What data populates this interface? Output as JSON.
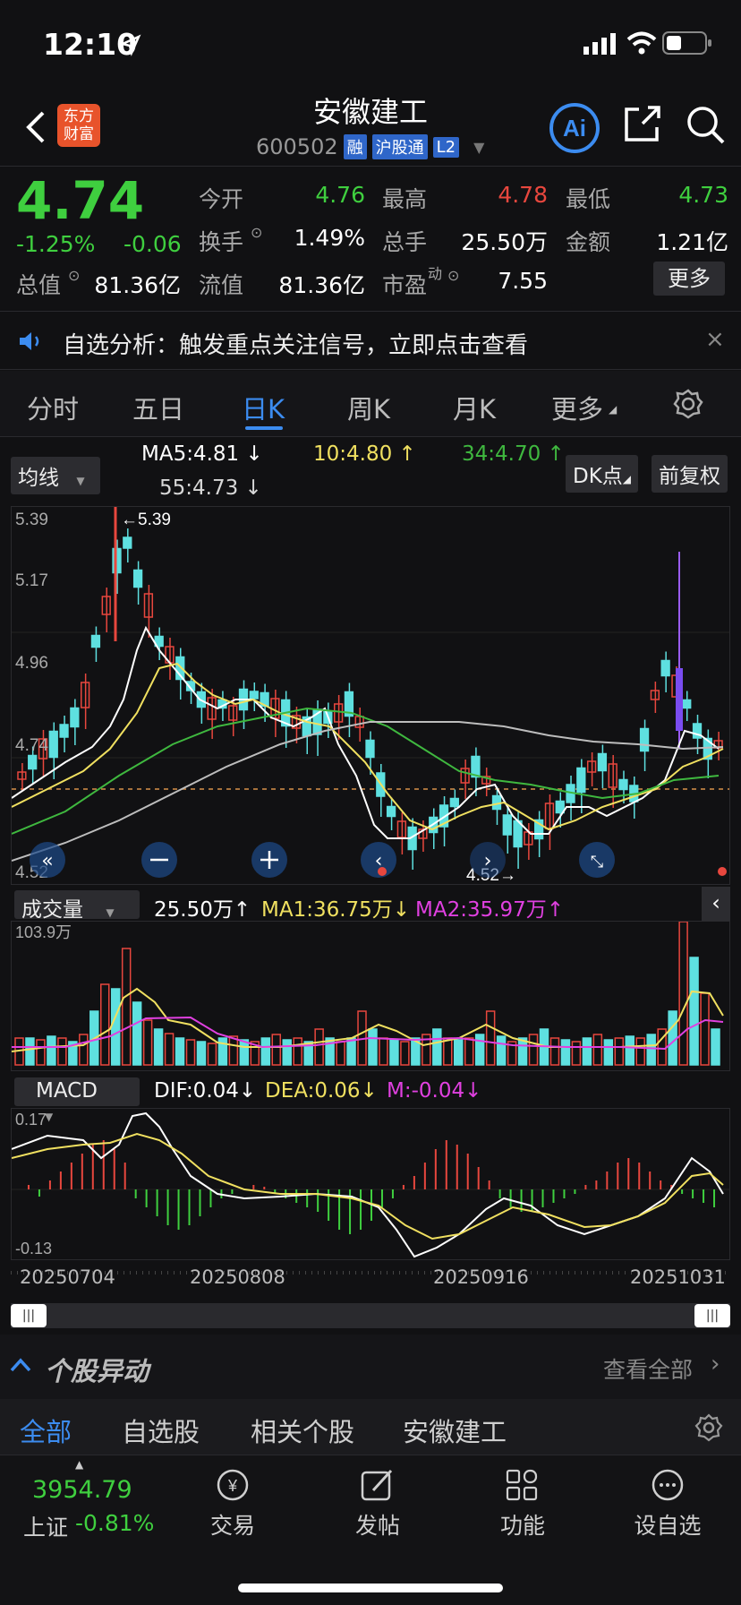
{
  "status": {
    "time": "12:10"
  },
  "header": {
    "title": "安徽建工",
    "code": "600502",
    "tags": [
      "融",
      "沪股通",
      "L2"
    ],
    "logo_text": [
      "东方",
      "财富"
    ]
  },
  "quote": {
    "price": "4.74",
    "change_pct": "-1.25%",
    "change": "-0.06",
    "open_label": "今开",
    "open": "4.76",
    "high_label": "最高",
    "high": "4.78",
    "low_label": "最低",
    "low": "4.73",
    "turnover_label": "换手",
    "turnover": "1.49%",
    "volume_label": "总手",
    "volume": "25.50万",
    "amount_label": "金额",
    "amount": "1.21亿",
    "total_cap_label": "总值",
    "total_cap": "81.36亿",
    "float_cap_label": "流值",
    "float_cap": "81.36亿",
    "pe_label": "市盈",
    "pe_sup": "动",
    "pe": "7.55",
    "more": "更多"
  },
  "notice": {
    "text": "自选分析：触发重点关注信号，立即点击查看"
  },
  "tabs": [
    "分时",
    "五日",
    "日K",
    "周K",
    "月K",
    "更多"
  ],
  "ma_bar": {
    "selector": "均线",
    "ma5": "MA5:4.81",
    "ma10": "10:4.80",
    "ma34": "34:4.70",
    "ma55": "55:4.73",
    "dk": "DK点",
    "adjust": "前复权"
  },
  "kline": {
    "y_max": "5.39",
    "y_517": "5.17",
    "y_496": "4.96",
    "y_474": "4.74",
    "y_min": "4.52",
    "max_mark": "←5.39",
    "min_mark": "4.52→"
  },
  "volume": {
    "selector": "成交量",
    "vol": "25.50万",
    "ma1": "MA1:36.75万",
    "ma2": "MA2:35.97万",
    "y_max": "103.9万"
  },
  "macd": {
    "selector": "MACD",
    "dif": "DIF:0.04",
    "dea": "DEA:0.06",
    "m": "M:-0.04",
    "y_max": "0.17",
    "y_min": "-0.13"
  },
  "dates": [
    "20250704",
    "20250808",
    "20250916",
    "20251031"
  ],
  "movers": {
    "title": "个股异动",
    "view_all": "查看全部"
  },
  "filter_tabs": [
    "全部",
    "自选股",
    "相关个股",
    "安徽建工"
  ],
  "bottom": {
    "index_value": "3954.79",
    "index_name": "上证",
    "index_change": "-0.81%",
    "items": [
      "交易",
      "发帖",
      "功能",
      "设自选"
    ]
  },
  "colors": {
    "up": "#e8473e",
    "down": "#3fcf3f",
    "accent": "#3c8cf0",
    "cyan": "#5ee0e0",
    "ma5": "#ffffff",
    "ma10": "#f0e060",
    "ma34": "#3fb83f",
    "ma55": "#bdbdbd",
    "ma2": "#e040e0"
  }
}
